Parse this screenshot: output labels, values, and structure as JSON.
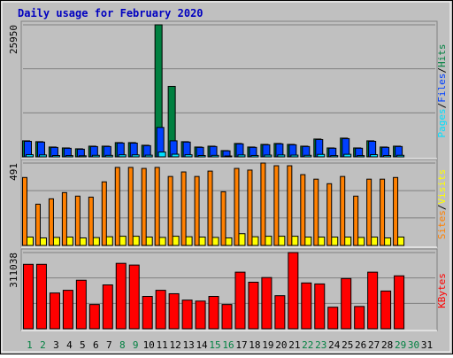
{
  "title": "Daily usage for February 2020",
  "chart_data": [
    {
      "type": "bar",
      "series": [
        {
          "name": "Hits",
          "color": "#008040",
          "values": [
            3150,
            2980,
            1930,
            1750,
            1580,
            2100,
            2100,
            2800,
            2800,
            2280,
            25950,
            13850,
            2980,
            1930,
            2100,
            1230,
            2630,
            1930,
            2450,
            2630,
            2450,
            2100,
            3500,
            1750,
            3680,
            1750,
            3150,
            1930,
            2100,
            null,
            null
          ]
        },
        {
          "name": "Files",
          "color": "#0040ff",
          "values": [
            3050,
            2900,
            1850,
            1680,
            1500,
            2020,
            2030,
            2720,
            2700,
            2200,
            5780,
            3150,
            2900,
            1860,
            2030,
            1180,
            2550,
            1860,
            2370,
            2550,
            2370,
            2030,
            3400,
            1690,
            3580,
            1690,
            3050,
            1860,
            2030,
            null,
            null
          ]
        },
        {
          "name": "Pages",
          "color": "#00e0ff",
          "values": [
            420,
            380,
            260,
            240,
            210,
            300,
            290,
            400,
            390,
            330,
            950,
            520,
            410,
            260,
            290,
            170,
            370,
            270,
            350,
            370,
            340,
            300,
            480,
            240,
            500,
            240,
            430,
            260,
            300,
            null,
            null
          ]
        }
      ],
      "ylim": [
        0,
        25950
      ],
      "yticks": [
        25950
      ],
      "ygrid": [
        8650,
        17300
      ],
      "legend_separator": "/"
    },
    {
      "type": "bar",
      "series": [
        {
          "name": "Visits",
          "color": "#ffff00",
          "values": [
            50,
            45,
            48,
            50,
            45,
            47,
            52,
            55,
            55,
            50,
            48,
            55,
            52,
            50,
            48,
            45,
            70,
            52,
            55,
            55,
            55,
            50,
            50,
            50,
            50,
            48,
            50,
            45,
            50,
            null,
            null
          ]
        },
        {
          "name": "Sites",
          "color": "#ff8000",
          "values": [
            405,
            246,
            278,
            315,
            294,
            288,
            379,
            465,
            465,
            459,
            465,
            411,
            438,
            411,
            443,
            320,
            459,
            449,
            491,
            475,
            475,
            422,
            395,
            368,
            411,
            294,
            395,
            395,
            405,
            null,
            null
          ]
        }
      ],
      "ylim": [
        0,
        491
      ],
      "yticks": [
        491
      ],
      "ygrid": [
        164,
        327
      ],
      "legend_separator": "/"
    },
    {
      "type": "bar",
      "categories": [
        "1",
        "2",
        "3",
        "4",
        "5",
        "6",
        "7",
        "8",
        "9",
        "10",
        "11",
        "12",
        "13",
        "14",
        "15",
        "16",
        "17",
        "18",
        "19",
        "20",
        "21",
        "22",
        "23",
        "24",
        "25",
        "26",
        "27",
        "28",
        "29",
        "30",
        "31"
      ],
      "category_colors": [
        "#008040",
        "#008040",
        "#000000",
        "#000000",
        "#000000",
        "#000000",
        "#000000",
        "#008040",
        "#008040",
        "#000000",
        "#000000",
        "#000000",
        "#000000",
        "#000000",
        "#008040",
        "#008040",
        "#000000",
        "#000000",
        "#000000",
        "#000000",
        "#000000",
        "#008040",
        "#008040",
        "#000000",
        "#000000",
        "#000000",
        "#000000",
        "#000000",
        "#008040",
        "#008040",
        "#000000"
      ],
      "series": [
        {
          "name": "KBytes",
          "color": "#ff0000",
          "values": [
            263000,
            263000,
            146000,
            157000,
            198000,
            99000,
            179000,
            267000,
            260000,
            132000,
            157000,
            143000,
            117000,
            113000,
            132000,
            99000,
            231000,
            190000,
            209000,
            135000,
            311038,
            187000,
            183000,
            88000,
            205000,
            91000,
            231000,
            154000,
            216000,
            null,
            null
          ]
        }
      ],
      "ylim": [
        0,
        311038
      ],
      "yticks": [
        311038
      ],
      "ygrid": [
        103679,
        207359
      ]
    }
  ]
}
